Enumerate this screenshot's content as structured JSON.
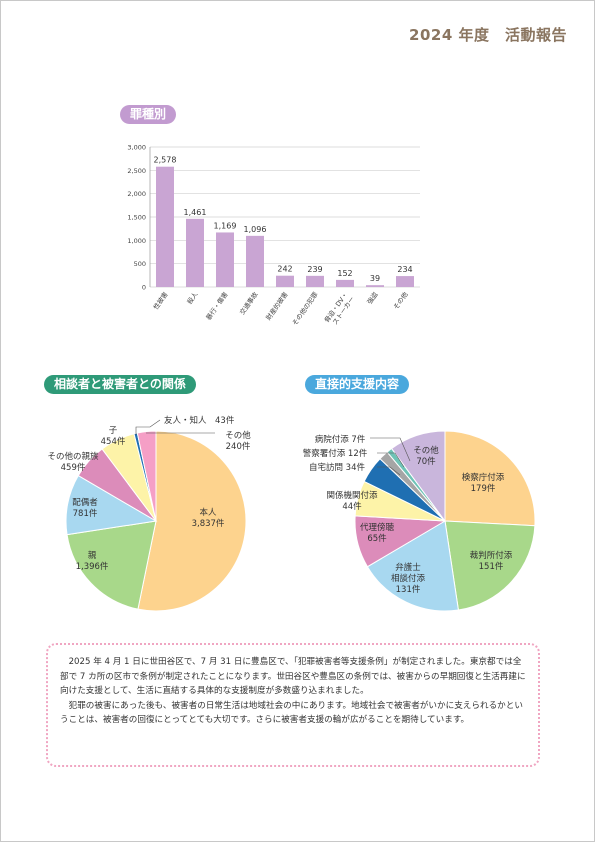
{
  "header": {
    "title": "2024 年度　活動報告"
  },
  "sections": {
    "crime_type": "罪種別",
    "relationship": "相談者と被害者との関係",
    "direct_support": "直接的支援内容"
  },
  "chart_data": [
    {
      "type": "bar",
      "title": "罪種別",
      "categories": [
        "性被害",
        "殺人",
        "暴行・傷害",
        "交通事故",
        "財産的被害",
        "その他の犯罪",
        "脅迫・DV・ストーカー",
        "強盗",
        "その他"
      ],
      "values": [
        2578,
        1461,
        1169,
        1096,
        242,
        239,
        152,
        39,
        234
      ],
      "value_labels": [
        "2,578",
        "1,461",
        "1,169",
        "1,096",
        "242",
        "239",
        "152",
        "39",
        "234"
      ],
      "yticks": [
        "0",
        "500",
        "1,000",
        "1,500",
        "2,000",
        "2,500",
        "3,000"
      ],
      "ylim": [
        0,
        3000
      ],
      "grid": true,
      "color": "#c9a5d3"
    },
    {
      "type": "pie",
      "title": "相談者と被害者との関係",
      "slices": [
        {
          "label": "本人",
          "value": 3837,
          "text": "3,837件",
          "color": "#fdd38e"
        },
        {
          "label": "親",
          "value": 1396,
          "text": "1,396件",
          "color": "#a8d88a"
        },
        {
          "label": "配偶者",
          "value": 781,
          "text": "781件",
          "color": "#a8d8f0"
        },
        {
          "label": "その他の親族",
          "value": 459,
          "text": "459件",
          "color": "#dc8cba"
        },
        {
          "label": "子",
          "value": 454,
          "text": "454件",
          "color": "#fdf3a8"
        },
        {
          "label": "友人・知人",
          "value": 43,
          "text": "43件",
          "color": "#1f6fb2"
        },
        {
          "label": "その他",
          "value": 240,
          "text": "240件",
          "color": "#f59fc6"
        }
      ]
    },
    {
      "type": "pie",
      "title": "直接的支援内容",
      "slices": [
        {
          "label": "検察庁付添",
          "value": 179,
          "text": "179件",
          "color": "#fdd38e"
        },
        {
          "label": "裁判所付添",
          "value": 151,
          "text": "151件",
          "color": "#a8d88a"
        },
        {
          "label": "弁護士相談付添",
          "value": 131,
          "text": "131件",
          "color": "#a8d8f0"
        },
        {
          "label": "代理傍聴",
          "value": 65,
          "text": "65件",
          "color": "#dc8cba"
        },
        {
          "label": "関係機関付添",
          "value": 44,
          "text": "44件",
          "color": "#fdf3a8"
        },
        {
          "label": "自宅訪問",
          "value": 34,
          "text": "34件",
          "color": "#1f6fb2"
        },
        {
          "label": "警察署付添",
          "value": 12,
          "text": "12件",
          "color": "#a5a5a5"
        },
        {
          "label": "病院付添",
          "value": 7,
          "text": "7件",
          "color": "#6ec3b6"
        },
        {
          "label": "その他",
          "value": 70,
          "text": "70件",
          "color": "#c9b6dc"
        }
      ]
    }
  ],
  "note": {
    "paragraph1": "2025 年 4 月 1 日に世田谷区で、7 月 31 日に豊島区で、「犯罪被害者等支援条例」が制定されました。東京都では全部で 7 カ所の区市で条例が制定されたことになります。世田谷区や豊島区の条例では、被害からの早期回復と生活再建に向けた支援として、生活に直結する具体的な支援制度が多数盛り込まれました。",
    "paragraph2": "犯罪の被害にあった後も、被害者の日常生活は地域社会の中にあります。地域社会で被害者がいかに支えられるかということは、被害者の回復にとってとても大切です。さらに被害者支援の輪が広がることを期待しています。"
  }
}
